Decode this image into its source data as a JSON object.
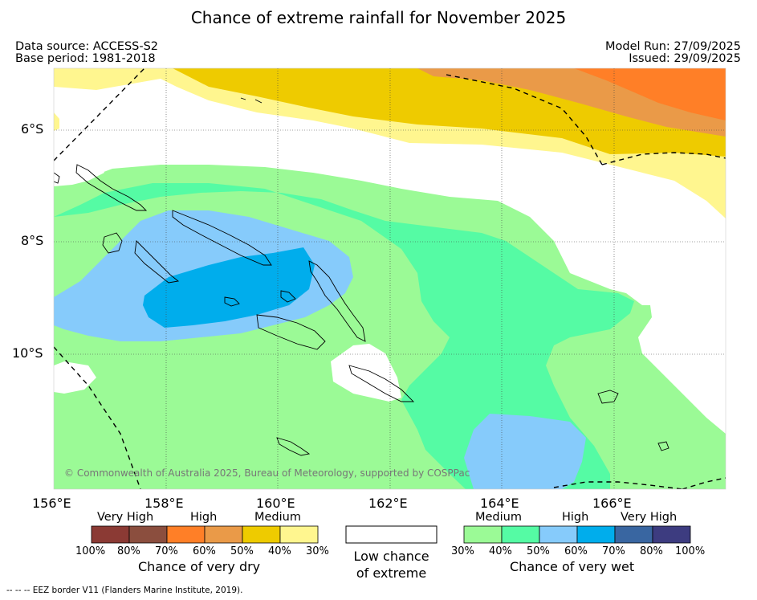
{
  "title": "Chance of extreme rainfall for November 2025",
  "header": {
    "data_source": "Data source: ACCESS-S2",
    "base_period": "Base period: 1981-2018",
    "model_run": "Model Run: 27/09/2025",
    "issued": "Issued: 29/09/2025"
  },
  "map": {
    "lon_labels": [
      "156°E",
      "158°E",
      "160°E",
      "162°E",
      "164°E",
      "166°E"
    ],
    "lat_labels": [
      "6°S",
      "8°S",
      "10°S"
    ],
    "copyright": "© Commonwealth of Australia 2025, Bureau of Meteorology, supported by COSPPac"
  },
  "legend": {
    "dry": {
      "groups": [
        "Very High",
        "High",
        "Medium"
      ],
      "colors": [
        "#8b3a34",
        "#8b4e3e",
        "#ff7f27",
        "#ea9a48",
        "#eecb00",
        "#fff68f"
      ],
      "ticks": [
        "100%",
        "80%",
        "70%",
        "60%",
        "50%",
        "40%",
        "30%"
      ],
      "caption": "Chance of very dry"
    },
    "low": {
      "line1": "Low chance",
      "line2": "of extreme",
      "color": "#ffffff"
    },
    "wet": {
      "groups": [
        "Medium",
        "High",
        "Very High"
      ],
      "colors": [
        "#9bfa96",
        "#55fba4",
        "#86cbfb",
        "#00adec",
        "#3966a1",
        "#3d3c80"
      ],
      "ticks": [
        "30%",
        "40%",
        "50%",
        "60%",
        "70%",
        "80%",
        "100%"
      ],
      "caption": "Chance of very wet"
    }
  },
  "footnote": "--  --  -- EEZ border V11 (Flanders Marine Institute, 2019)."
}
